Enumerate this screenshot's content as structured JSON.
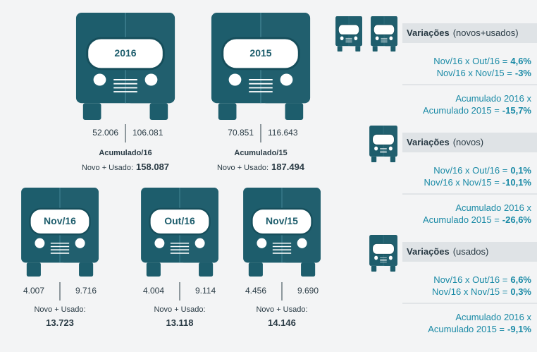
{
  "big_trucks": [
    {
      "label": "2016",
      "left": "52.006",
      "right": "106.081",
      "caption": "Acumulado/16",
      "total_label": "Novo + Usado:",
      "total": "158.087"
    },
    {
      "label": "2015",
      "left": "70.851",
      "right": "116.643",
      "caption": "Acumulado/15",
      "total_label": "Novo + Usado:",
      "total": "187.494"
    }
  ],
  "small_trucks": [
    {
      "label": "Nov/16",
      "left": "4.007",
      "right": "9.716",
      "total_label": "Novo + Usado:",
      "total": "13.723"
    },
    {
      "label": "Out/16",
      "left": "4.004",
      "right": "9.114",
      "total_label": "Novo + Usado:",
      "total": "13.118"
    },
    {
      "label": "Nov/15",
      "left": "4.456",
      "right": "9.690",
      "total_label": "Novo + Usado:",
      "total": "14.146"
    }
  ],
  "variations": [
    {
      "title": "Variações",
      "subtitle": "(novos+usados)",
      "rows": [
        {
          "label": "Nov/16 x Out/16 =",
          "value": "4,6%"
        },
        {
          "label": "Nov/16 x Nov/15 =",
          "value": "-3%"
        }
      ],
      "accumulated": {
        "line1": "Acumulado 2016 x",
        "label": "Acumulado 2015 =",
        "value": "-15,7%"
      }
    },
    {
      "title": "Variações",
      "subtitle": "(novos)",
      "rows": [
        {
          "label": "Nov/16 x Out/16 =",
          "value": "0,1%"
        },
        {
          "label": "Nov/16 x Nov/15 =",
          "value": "-10,1%"
        }
      ],
      "accumulated": {
        "line1": "Acumulado 2016 x",
        "label": "Acumulado 2015 =",
        "value": "-26,6%"
      }
    },
    {
      "title": "Variações",
      "subtitle": "(usados)",
      "rows": [
        {
          "label": "Nov/16 x Out/16 =",
          "value": "6,6%"
        },
        {
          "label": "Nov/16 x Nov/15 =",
          "value": "0,3%"
        }
      ],
      "accumulated": {
        "line1": "Acumulado 2016 x",
        "label": "Acumulado 2015 =",
        "value": "-9,1%"
      }
    }
  ]
}
